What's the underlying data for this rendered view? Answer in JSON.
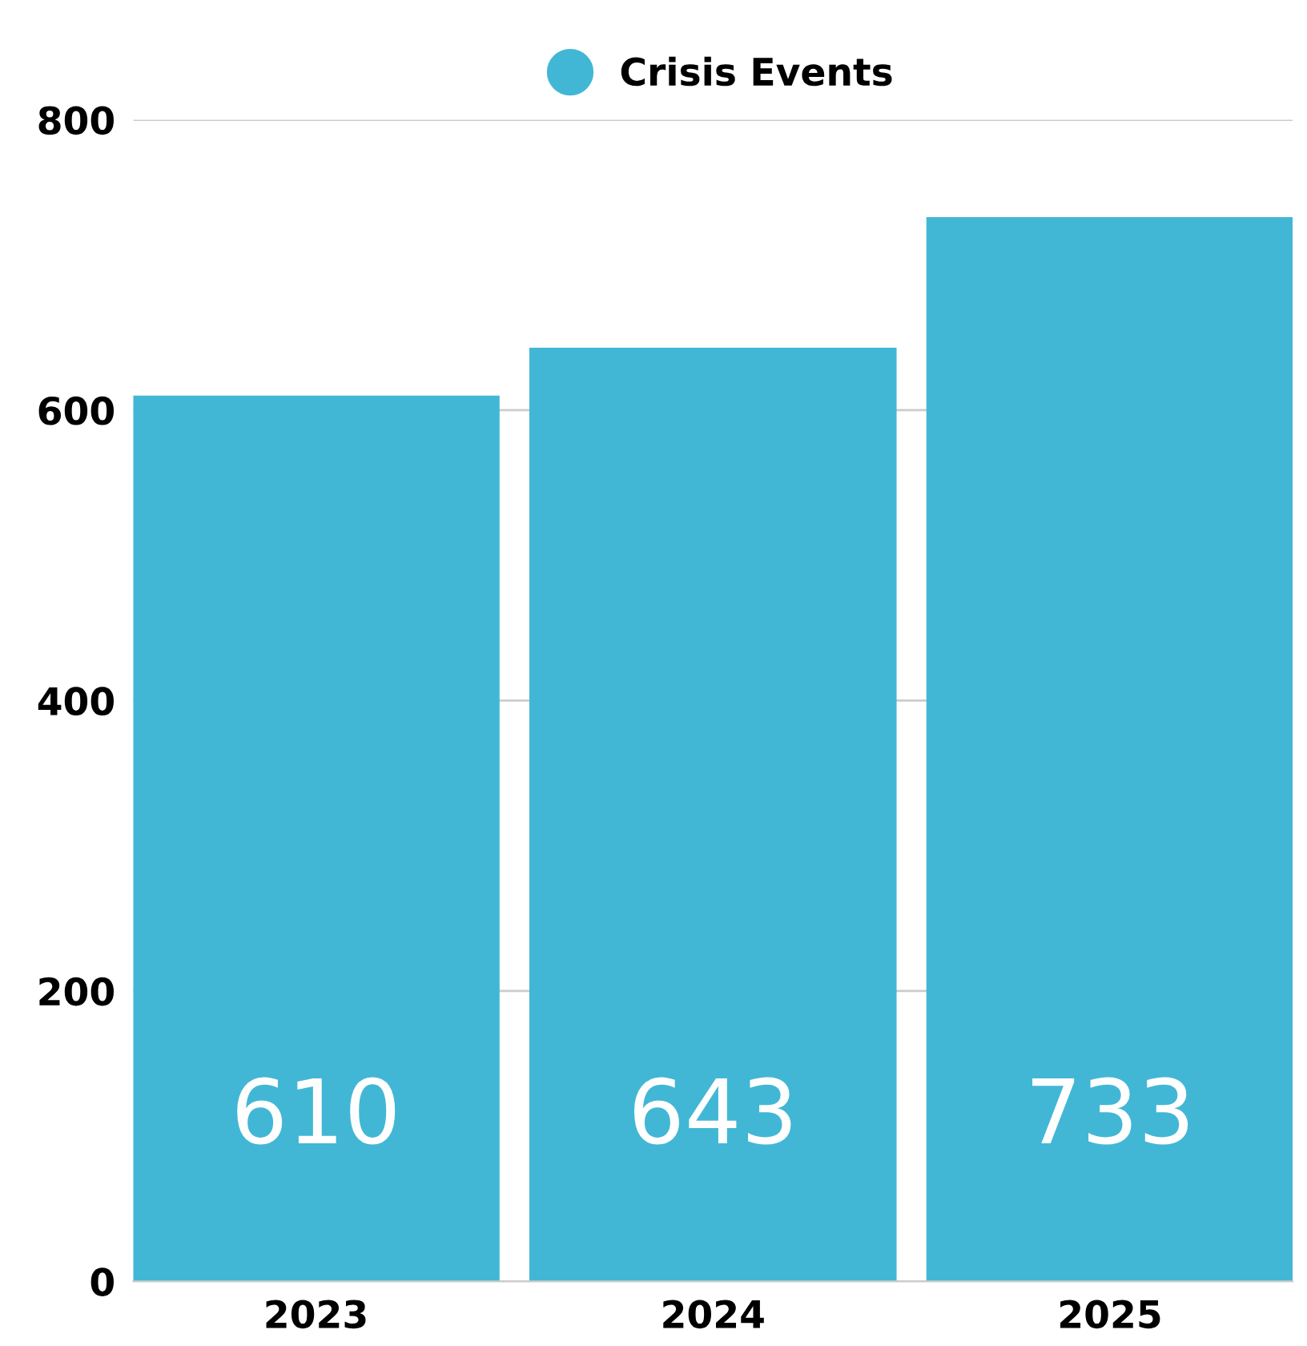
{
  "chart_data": {
    "type": "bar",
    "categories": [
      "2023",
      "2024",
      "2025"
    ],
    "series": [
      {
        "name": "Crisis Events",
        "color": "#42b7d5",
        "values": [
          610,
          643,
          733
        ]
      }
    ],
    "ylim": [
      0,
      800
    ],
    "yticks": [
      0,
      200,
      400,
      600,
      800
    ],
    "grid": "y",
    "legend": "top",
    "data_labels": true
  }
}
